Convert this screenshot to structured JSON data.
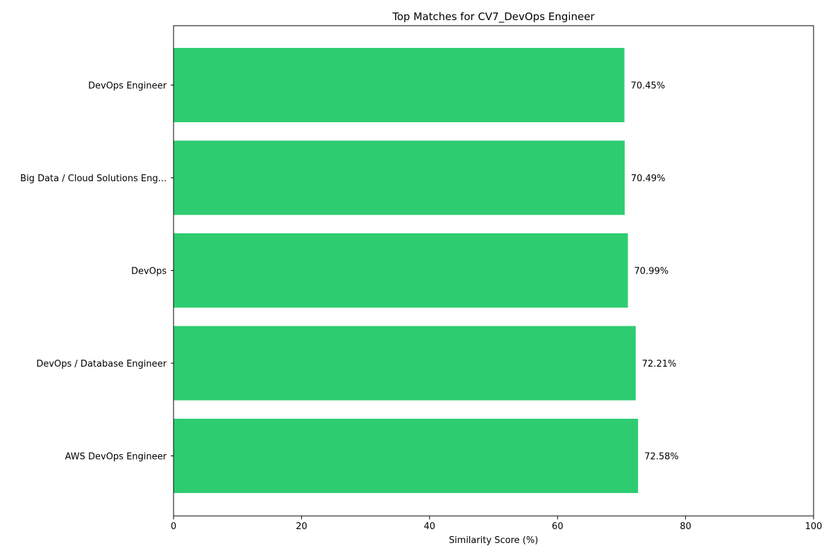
{
  "chart_data": {
    "type": "bar",
    "orientation": "horizontal",
    "title": "Top Matches for CV7_DevOps Engineer",
    "xlabel": "Similarity Score (%)",
    "ylabel": "",
    "xlim": [
      0,
      100
    ],
    "xticks": [
      0,
      20,
      40,
      60,
      80,
      100
    ],
    "categories": [
      "DevOps Engineer",
      "Big Data / Cloud Solutions Eng...",
      "DevOps",
      "DevOps / Database Engineer",
      "AWS DevOps Engineer"
    ],
    "values": [
      70.45,
      70.49,
      70.99,
      72.21,
      72.58
    ],
    "data_labels": [
      "70.45%",
      "70.49%",
      "70.99%",
      "72.21%",
      "72.58%"
    ],
    "bar_color": "#2ecc71",
    "grid": false,
    "legend": "none"
  }
}
